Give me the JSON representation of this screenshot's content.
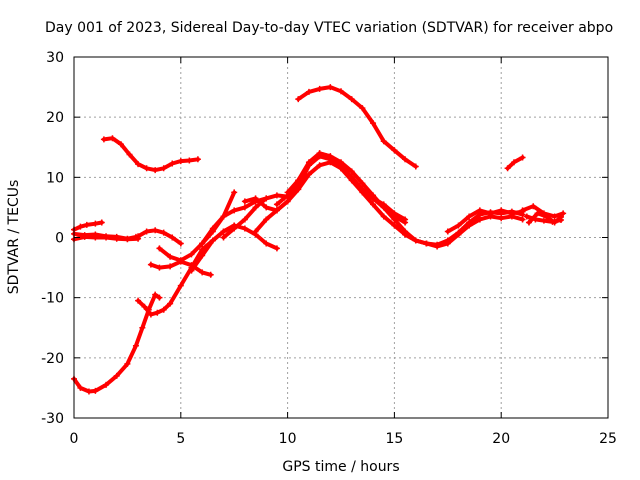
{
  "chart_data": {
    "type": "line",
    "title": "Day 001 of 2023, Sidereal Day-to-day VTEC variation (SDTVAR) for receiver abpo",
    "xlabel": "GPS time / hours",
    "ylabel": "SDTVAR / TECUs",
    "xlim": [
      0,
      25
    ],
    "ylim": [
      -30,
      30
    ],
    "xticks": [
      0,
      5,
      10,
      15,
      20,
      25
    ],
    "yticks": [
      -30,
      -20,
      -10,
      0,
      10,
      20,
      30
    ],
    "xtick_labels": [
      "0",
      "5",
      "10",
      "15",
      "20",
      "25"
    ],
    "ytick_labels": [
      "-30",
      "-20",
      "-10",
      "0",
      "10",
      "20",
      "30"
    ],
    "grid": true,
    "color": "#ff0000",
    "series": [
      {
        "name": "s1",
        "x": [
          0.0,
          0.3,
          0.6,
          1.0,
          1.3
        ],
        "y": [
          1.3,
          1.8,
          2.1,
          2.3,
          2.5
        ]
      },
      {
        "name": "s2",
        "x": [
          0.0,
          0.5,
          1.0,
          1.5,
          2.0,
          2.5,
          2.9
        ],
        "y": [
          0.6,
          0.4,
          0.5,
          0.2,
          0.1,
          -0.2,
          0.1
        ]
      },
      {
        "name": "s3",
        "x": [
          0.0,
          0.5,
          1.0,
          1.5,
          2.0,
          2.5,
          3.0
        ],
        "y": [
          -0.3,
          0.1,
          0.0,
          0.0,
          -0.2,
          -0.3,
          -0.2
        ]
      },
      {
        "name": "s4",
        "x": [
          0.0,
          0.3,
          0.7,
          1.0,
          1.5,
          2.0,
          2.5,
          2.9,
          3.2,
          3.5,
          3.8,
          4.0
        ],
        "y": [
          -23.5,
          -25.0,
          -25.6,
          -25.5,
          -24.5,
          -23.0,
          -21.0,
          -18.0,
          -15.0,
          -12.0,
          -9.5,
          -10.0
        ]
      },
      {
        "name": "s5",
        "x": [
          3.0,
          3.3,
          3.6,
          3.9,
          4.2,
          4.5,
          5.0,
          5.5,
          6.0,
          6.5,
          7.0,
          7.5
        ],
        "y": [
          -10.5,
          -11.5,
          -12.8,
          -12.5,
          -12.0,
          -11.0,
          -8.0,
          -5.0,
          -2.0,
          -0.5,
          1.0,
          2.0
        ]
      },
      {
        "name": "s6",
        "x": [
          1.4,
          1.8,
          2.2,
          2.6,
          3.0,
          3.4,
          3.8,
          4.2,
          4.6,
          5.0,
          5.4,
          5.8
        ],
        "y": [
          16.3,
          16.5,
          15.5,
          13.8,
          12.2,
          11.5,
          11.2,
          11.5,
          12.3,
          12.7,
          12.8,
          13.0
        ]
      },
      {
        "name": "s7",
        "x": [
          3.0,
          3.4,
          3.8,
          4.2,
          4.6,
          5.0
        ],
        "y": [
          0.2,
          1.0,
          1.2,
          0.8,
          0.0,
          -1.0
        ]
      },
      {
        "name": "s8",
        "x": [
          3.6,
          4.0,
          4.5,
          5.0,
          5.5,
          6.0,
          6.4
        ],
        "y": [
          -4.5,
          -5.0,
          -4.8,
          -4.0,
          -4.6,
          -5.8,
          -6.2
        ]
      },
      {
        "name": "s9",
        "x": [
          4.0,
          4.5,
          5.0,
          5.5,
          6.0,
          6.5,
          7.0,
          7.5
        ],
        "y": [
          -1.8,
          -3.2,
          -3.8,
          -2.8,
          -1.0,
          1.0,
          3.5,
          7.5
        ]
      },
      {
        "name": "s10",
        "x": [
          5.5,
          6.0,
          6.5,
          7.0,
          7.5,
          8.0,
          8.5,
          9.0,
          9.5
        ],
        "y": [
          -5.5,
          -3.0,
          -0.5,
          1.0,
          2.0,
          1.5,
          0.5,
          -1.0,
          -1.8
        ]
      },
      {
        "name": "s11",
        "x": [
          6.0,
          6.5,
          7.0,
          7.5,
          8.0,
          8.5,
          9.0
        ],
        "y": [
          -1.0,
          1.5,
          3.5,
          4.5,
          5.0,
          6.0,
          6.5
        ]
      },
      {
        "name": "s12",
        "x": [
          7.0,
          7.5,
          8.0,
          8.5,
          9.0,
          9.5,
          10.0
        ],
        "y": [
          0.0,
          1.5,
          3.0,
          5.0,
          6.5,
          7.0,
          6.8
        ]
      },
      {
        "name": "s13",
        "x": [
          8.0,
          8.5,
          9.0,
          9.5,
          10.0,
          10.5,
          11.0,
          11.5,
          12.0,
          12.5,
          13.0,
          13.5,
          14.0,
          14.5,
          15.0,
          15.5
        ],
        "y": [
          6.0,
          6.5,
          5.0,
          4.5,
          6.0,
          8.5,
          12.0,
          14.0,
          13.5,
          12.0,
          10.0,
          8.0,
          6.5,
          5.0,
          3.5,
          2.5
        ]
      },
      {
        "name": "s14",
        "x": [
          8.5,
          9.0,
          9.5,
          10.0,
          10.5,
          11.0,
          11.5,
          12.0,
          12.5,
          13.0,
          13.5,
          14.0,
          14.5,
          15.0,
          15.5
        ],
        "y": [
          1.0,
          3.0,
          4.5,
          6.0,
          8.0,
          10.5,
          12.0,
          12.5,
          11.5,
          10.0,
          8.0,
          6.5,
          5.5,
          4.0,
          3.0
        ]
      },
      {
        "name": "s15",
        "x": [
          9.5,
          10.0,
          10.5,
          11.0,
          11.5,
          12.0,
          12.5,
          13.0,
          13.5,
          14.0,
          14.5,
          15.0,
          15.5,
          16.0,
          16.5,
          17.0,
          17.5,
          18.0,
          18.5,
          19.0
        ],
        "y": [
          5.5,
          7.0,
          9.5,
          12.0,
          13.5,
          13.0,
          11.5,
          9.5,
          7.5,
          5.5,
          3.5,
          2.0,
          0.5,
          -0.5,
          -1.0,
          -1.3,
          -0.5,
          0.5,
          2.0,
          3.0
        ]
      },
      {
        "name": "s16",
        "x": [
          10.0,
          10.5,
          11.0,
          11.5,
          12.0,
          12.5,
          13.0,
          13.5,
          14.0,
          14.5,
          15.0,
          15.5,
          16.0,
          16.5,
          17.0,
          17.5,
          18.0
        ],
        "y": [
          7.5,
          9.5,
          12.5,
          14.0,
          13.5,
          12.5,
          11.0,
          9.0,
          7.0,
          5.0,
          3.0,
          1.0,
          -0.5,
          -1.0,
          -1.5,
          -1.0,
          0.5
        ]
      },
      {
        "name": "s17",
        "x": [
          10.5,
          11.0,
          11.5,
          12.0,
          12.5,
          13.0,
          13.5,
          14.0,
          14.5,
          15.0,
          15.5,
          16.0
        ],
        "y": [
          23.0,
          24.2,
          24.7,
          25.0,
          24.3,
          23.0,
          21.5,
          19.0,
          16.0,
          14.5,
          13.0,
          11.8
        ]
      },
      {
        "name": "s18",
        "x": [
          15.5,
          16.0,
          16.5,
          17.0,
          17.5,
          18.0,
          18.5,
          19.0,
          19.5,
          20.0,
          20.5,
          21.0
        ],
        "y": [
          0.5,
          -0.5,
          -1.0,
          -1.2,
          -0.5,
          0.8,
          2.5,
          3.8,
          4.2,
          4.0,
          4.3,
          3.8
        ]
      },
      {
        "name": "s19",
        "x": [
          17.5,
          18.0,
          18.5,
          19.0,
          19.5,
          20.0,
          20.5,
          21.0
        ],
        "y": [
          1.0,
          2.0,
          3.5,
          4.5,
          4.0,
          4.5,
          4.0,
          4.3
        ]
      },
      {
        "name": "s20",
        "x": [
          18.5,
          19.0,
          19.5,
          20.0,
          20.5,
          21.0
        ],
        "y": [
          2.0,
          3.0,
          3.5,
          3.2,
          3.5,
          3.0
        ]
      },
      {
        "name": "s21",
        "x": [
          20.3,
          20.6,
          21.0
        ],
        "y": [
          11.5,
          12.5,
          13.3
        ]
      },
      {
        "name": "s22",
        "x": [
          21.0,
          21.5,
          22.0,
          22.5,
          22.9
        ],
        "y": [
          4.5,
          5.2,
          4.0,
          3.5,
          4.0
        ]
      },
      {
        "name": "s23",
        "x": [
          21.2,
          21.6,
          22.0,
          22.4,
          22.8
        ],
        "y": [
          3.5,
          3.0,
          2.8,
          2.6,
          2.9
        ]
      },
      {
        "name": "s24",
        "x": [
          21.3,
          21.7,
          22.1,
          22.5,
          22.8
        ],
        "y": [
          2.5,
          4.0,
          3.5,
          2.5,
          3.4
        ]
      }
    ]
  }
}
